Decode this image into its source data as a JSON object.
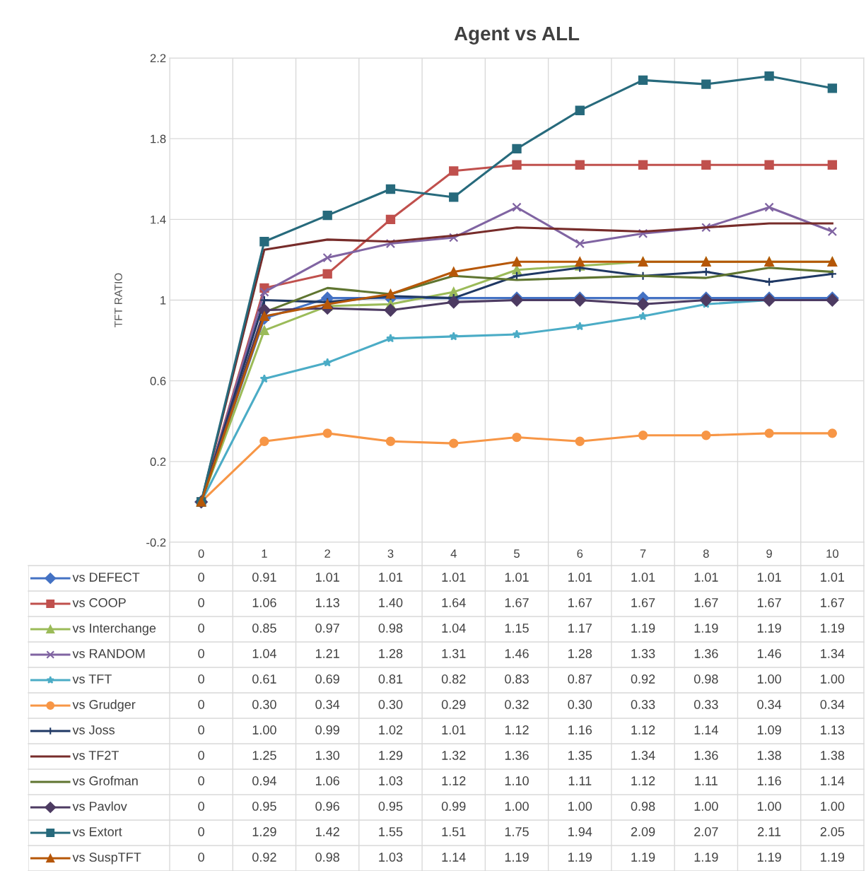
{
  "chart_data": {
    "type": "line",
    "title": "Agent vs ALL",
    "ylabel": "TFT RATIO",
    "categories": [
      "0",
      "1",
      "2",
      "3",
      "4",
      "5",
      "6",
      "7",
      "8",
      "9",
      "10"
    ],
    "ylim": [
      -0.2,
      2.2
    ],
    "yticks": [
      -0.2,
      0.2,
      0.6,
      1,
      1.4,
      1.8,
      2.2
    ],
    "grid": true,
    "legend": "bottom",
    "series": [
      {
        "name": "vs DEFECT",
        "color": "#4472c4",
        "marker": "diamond",
        "values": [
          0,
          0.91,
          1.01,
          1.01,
          1.01,
          1.01,
          1.01,
          1.01,
          1.01,
          1.01,
          1.01
        ],
        "value_labels": [
          "0",
          "0.91",
          "1.01",
          "1.01",
          "1.01",
          "1.01",
          "1.01",
          "1.01",
          "1.01",
          "1.01",
          "1.01"
        ]
      },
      {
        "name": "vs COOP",
        "color": "#c0504d",
        "marker": "square",
        "values": [
          0,
          1.06,
          1.13,
          1.4,
          1.64,
          1.67,
          1.67,
          1.67,
          1.67,
          1.67,
          1.67
        ],
        "value_labels": [
          "0",
          "1.06",
          "1.13",
          "1.40",
          "1.64",
          "1.67",
          "1.67",
          "1.67",
          "1.67",
          "1.67",
          "1.67"
        ]
      },
      {
        "name": "vs Interchange",
        "color": "#9bbb59",
        "marker": "triangle",
        "values": [
          0,
          0.85,
          0.97,
          0.98,
          1.04,
          1.15,
          1.17,
          1.19,
          1.19,
          1.19,
          1.19
        ],
        "value_labels": [
          "0",
          "0.85",
          "0.97",
          "0.98",
          "1.04",
          "1.15",
          "1.17",
          "1.19",
          "1.19",
          "1.19",
          "1.19"
        ]
      },
      {
        "name": "vs RANDOM",
        "color": "#8064a2",
        "marker": "cross",
        "values": [
          0,
          1.04,
          1.21,
          1.28,
          1.31,
          1.46,
          1.28,
          1.33,
          1.36,
          1.46,
          1.34
        ],
        "value_labels": [
          "0",
          "1.04",
          "1.21",
          "1.28",
          "1.31",
          "1.46",
          "1.28",
          "1.33",
          "1.36",
          "1.46",
          "1.34"
        ]
      },
      {
        "name": "vs TFT",
        "color": "#4bacc6",
        "marker": "star",
        "values": [
          0,
          0.61,
          0.69,
          0.81,
          0.82,
          0.83,
          0.87,
          0.92,
          0.98,
          1.0,
          1.0
        ],
        "value_labels": [
          "0",
          "0.61",
          "0.69",
          "0.81",
          "0.82",
          "0.83",
          "0.87",
          "0.92",
          "0.98",
          "1.00",
          "1.00"
        ]
      },
      {
        "name": "vs Grudger",
        "color": "#f79646",
        "marker": "circle",
        "values": [
          0,
          0.3,
          0.34,
          0.3,
          0.29,
          0.32,
          0.3,
          0.33,
          0.33,
          0.34,
          0.34
        ],
        "value_labels": [
          "0",
          "0.30",
          "0.34",
          "0.30",
          "0.29",
          "0.32",
          "0.30",
          "0.33",
          "0.33",
          "0.34",
          "0.34"
        ]
      },
      {
        "name": "vs Joss",
        "color": "#1f3864",
        "marker": "plus",
        "values": [
          0,
          1.0,
          0.99,
          1.02,
          1.01,
          1.12,
          1.16,
          1.12,
          1.14,
          1.09,
          1.13
        ],
        "value_labels": [
          "0",
          "1.00",
          "0.99",
          "1.02",
          "1.01",
          "1.12",
          "1.16",
          "1.12",
          "1.14",
          "1.09",
          "1.13"
        ]
      },
      {
        "name": "vs TF2T",
        "color": "#772c2a",
        "marker": "none",
        "values": [
          0,
          1.25,
          1.3,
          1.29,
          1.32,
          1.36,
          1.35,
          1.34,
          1.36,
          1.38,
          1.38
        ],
        "value_labels": [
          "0",
          "1.25",
          "1.30",
          "1.29",
          "1.32",
          "1.36",
          "1.35",
          "1.34",
          "1.36",
          "1.38",
          "1.38"
        ]
      },
      {
        "name": "vs Grofman",
        "color": "#5f7530",
        "marker": "none",
        "values": [
          0,
          0.94,
          1.06,
          1.03,
          1.12,
          1.1,
          1.11,
          1.12,
          1.11,
          1.16,
          1.14
        ],
        "value_labels": [
          "0",
          "0.94",
          "1.06",
          "1.03",
          "1.12",
          "1.10",
          "1.11",
          "1.12",
          "1.11",
          "1.16",
          "1.14"
        ]
      },
      {
        "name": "vs Pavlov",
        "color": "#4d3b62",
        "marker": "diamond",
        "values": [
          0,
          0.95,
          0.96,
          0.95,
          0.99,
          1.0,
          1.0,
          0.98,
          1.0,
          1.0,
          1.0
        ],
        "value_labels": [
          "0",
          "0.95",
          "0.96",
          "0.95",
          "0.99",
          "1.00",
          "1.00",
          "0.98",
          "1.00",
          "1.00",
          "1.00"
        ]
      },
      {
        "name": "vs Extort",
        "color": "#276a7c",
        "marker": "square",
        "values": [
          0,
          1.29,
          1.42,
          1.55,
          1.51,
          1.75,
          1.94,
          2.09,
          2.07,
          2.11,
          2.05
        ],
        "value_labels": [
          "0",
          "1.29",
          "1.42",
          "1.55",
          "1.51",
          "1.75",
          "1.94",
          "2.09",
          "2.07",
          "2.11",
          "2.05"
        ]
      },
      {
        "name": "vs SuspTFT",
        "color": "#b65708",
        "marker": "triangle",
        "values": [
          0,
          0.92,
          0.98,
          1.03,
          1.14,
          1.19,
          1.19,
          1.19,
          1.19,
          1.19,
          1.19
        ],
        "value_labels": [
          "0",
          "0.92",
          "0.98",
          "1.03",
          "1.14",
          "1.19",
          "1.19",
          "1.19",
          "1.19",
          "1.19",
          "1.19"
        ]
      }
    ]
  }
}
